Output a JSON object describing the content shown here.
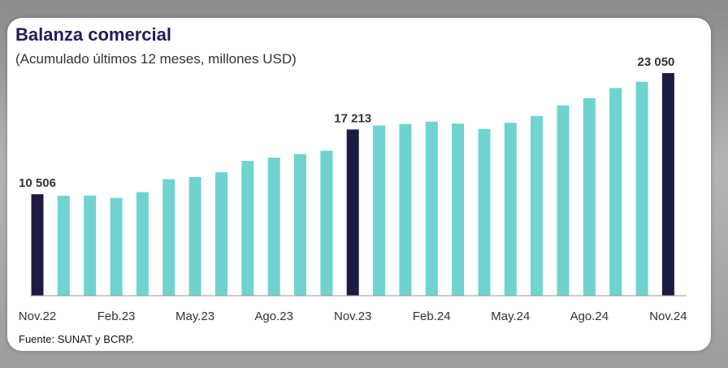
{
  "title": "Balanza comercial",
  "subtitle": "(Acumulado últimos 12 meses, millones USD)",
  "source": "Fuente: SUNAT y BCRP.",
  "colors": {
    "bar": "#6fd3d0",
    "highlight": "#1c1b45",
    "axis": "#999999"
  },
  "chart_data": {
    "type": "bar",
    "title": "Balanza comercial",
    "subtitle": "(Acumulado últimos 12 meses, millones USD)",
    "x_tick_labels": [
      "Nov.22",
      "Feb.23",
      "May.23",
      "Ago.23",
      "Nov.23",
      "Feb.24",
      "May.24",
      "Ago.24",
      "Nov.24"
    ],
    "x_tick_every": 3,
    "values": [
      10506,
      10350,
      10360,
      10130,
      10730,
      12060,
      12280,
      12780,
      13960,
      14290,
      14660,
      15010,
      17213,
      17620,
      17780,
      18020,
      17830,
      17270,
      17900,
      18610,
      19700,
      20450,
      21510,
      22150,
      23050
    ],
    "highlighted_indices": [
      0,
      12,
      24
    ],
    "data_labels": [
      {
        "index": 0,
        "text": "10 506"
      },
      {
        "index": 12,
        "text": "17 213"
      },
      {
        "index": 24,
        "text": "23 050"
      }
    ],
    "ylim": [
      0,
      23050
    ],
    "grid": false,
    "legend": "none"
  }
}
